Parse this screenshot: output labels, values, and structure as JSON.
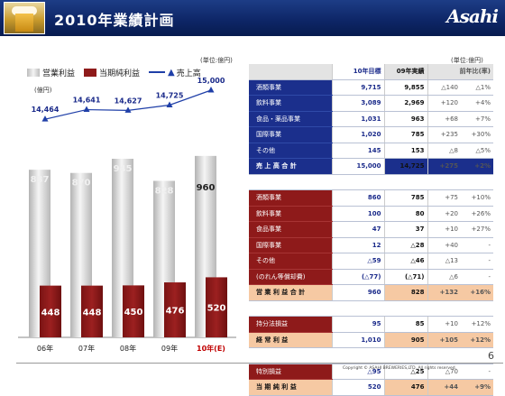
{
  "header": {
    "title": "2010年業績計画",
    "logo": "Asahi",
    "thumb": "beer-glass-image"
  },
  "chart_data": {
    "type": "bar",
    "categories": [
      "06年",
      "07年",
      "08年",
      "09年",
      "10年(E)"
    ],
    "series": [
      {
        "name": "営業利益",
        "values": [
          887,
          870,
          945,
          828,
          960
        ],
        "color": "#d9d9d9"
      },
      {
        "name": "当期純利益",
        "values": [
          448,
          448,
          450,
          476,
          520
        ],
        "color": "#8e1a1a"
      },
      {
        "name": "売上高",
        "values": [
          14464,
          14641,
          14627,
          14725,
          15000
        ],
        "color": "#1f3fa8"
      }
    ],
    "unit": "(単位:億円)",
    "ylabel": "(億円)",
    "highlight_category": "10年(E)"
  },
  "table": {
    "unit": "(単位:億円)",
    "headers": [
      "10年目標",
      "09年実績",
      "前年比(率)"
    ],
    "sales_rows": [
      {
        "label": "酒類事業",
        "target": "9,715",
        "actual": "9,855",
        "diff": "△140",
        "rate": "△1%"
      },
      {
        "label": "飲料事業",
        "target": "3,089",
        "actual": "2,969",
        "diff": "+120",
        "rate": "+4%"
      },
      {
        "label": "食品・薬品事業",
        "target": "1,031",
        "actual": "963",
        "diff": "+68",
        "rate": "+7%"
      },
      {
        "label": "国際事業",
        "target": "1,020",
        "actual": "785",
        "diff": "+235",
        "rate": "+30%"
      },
      {
        "label": "その他",
        "target": "145",
        "actual": "153",
        "diff": "△8",
        "rate": "△5%"
      }
    ],
    "sales_total": {
      "label": "売 上 高 合 計",
      "target": "15,000",
      "actual": "14,725",
      "diff": "+275",
      "rate": "+2%"
    },
    "op_rows": [
      {
        "label": "酒類事業",
        "target": "860",
        "actual": "785",
        "diff": "+75",
        "rate": "+10%"
      },
      {
        "label": "飲料事業",
        "target": "100",
        "actual": "80",
        "diff": "+20",
        "rate": "+26%"
      },
      {
        "label": "食品事業",
        "target": "47",
        "actual": "37",
        "diff": "+10",
        "rate": "+27%"
      },
      {
        "label": "国際事業",
        "target": "12",
        "actual": "△28",
        "diff": "+40",
        "rate": "-"
      },
      {
        "label": "その他",
        "target": "△59",
        "actual": "△46",
        "diff": "△13",
        "rate": "-"
      },
      {
        "label": "(のれん等償却費)",
        "target": "(△77)",
        "actual": "(△71)",
        "diff": "△6",
        "rate": "-"
      }
    ],
    "op_total": {
      "label": "営 業 利 益 合 計",
      "target": "960",
      "actual": "828",
      "diff": "+132",
      "rate": "+16%"
    },
    "equity_row": {
      "label": "持分法損益",
      "target": "95",
      "actual": "85",
      "diff": "+10",
      "rate": "+12%"
    },
    "ordinary_total": {
      "label": "経 常 利 益",
      "target": "1,010",
      "actual": "905",
      "diff": "+105",
      "rate": "+12%"
    },
    "special_row": {
      "label": "特別損益",
      "target": "△95",
      "actual": "△25",
      "diff": "△70",
      "rate": "-"
    },
    "net_total": {
      "label": "当 期 純 利 益",
      "target": "520",
      "actual": "476",
      "diff": "+44",
      "rate": "+9%"
    }
  },
  "footer": {
    "copyright": "Copyright © ASAHI BREWERIES,LTD. All rights reserved.",
    "page": "6"
  }
}
